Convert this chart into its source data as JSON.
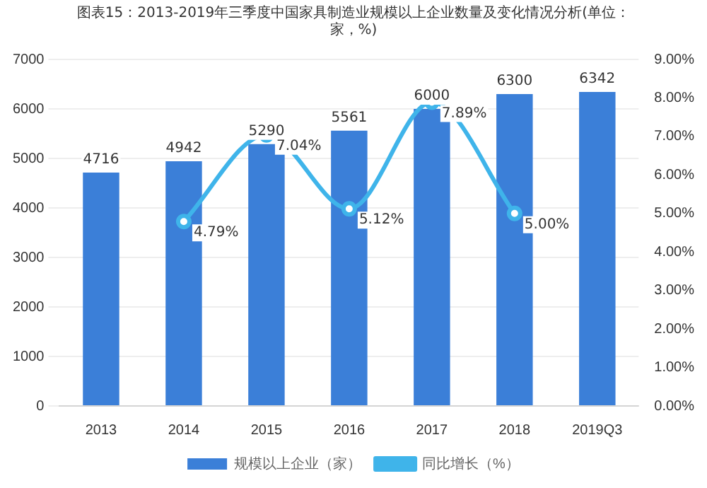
{
  "chart_data": {
    "type": "bar",
    "title": "图表15：2013-2019年三季度中国家具制造业规模以上企业数量及变化情况分析(单位：家，%)",
    "categories": [
      "2013",
      "2014",
      "2015",
      "2016",
      "2017",
      "2018",
      "2019Q3"
    ],
    "series": [
      {
        "name": "规模以上企业（家）",
        "color": "#3b7fd8",
        "values": [
          4716,
          4942,
          5290,
          5561,
          6000,
          6300,
          6342
        ]
      },
      {
        "name": "同比增长（%）",
        "type": "line",
        "axis": "y2",
        "color": "#3fb4ea",
        "values": [
          null,
          4.79,
          7.04,
          5.12,
          7.89,
          5.0,
          null
        ],
        "value_labels": [
          null,
          "4.79%",
          "7.04%",
          "5.12%",
          "7.89%",
          "5.00%",
          null
        ]
      }
    ],
    "ylim": [
      0,
      7000
    ],
    "yticks": [
      0,
      1000,
      2000,
      3000,
      4000,
      5000,
      6000,
      7000
    ],
    "y2lim": [
      0,
      9
    ],
    "y2ticks": [
      {
        "value": 0,
        "label": "0.00%"
      },
      {
        "value": 1,
        "label": "1.00%"
      },
      {
        "value": 2,
        "label": "2.00%"
      },
      {
        "value": 3,
        "label": "3.00%"
      },
      {
        "value": 4,
        "label": "4.00%"
      },
      {
        "value": 5,
        "label": "5.00%"
      },
      {
        "value": 6,
        "label": "6.00%"
      },
      {
        "value": 7,
        "label": "7.00%"
      },
      {
        "value": 8,
        "label": "8.00%"
      },
      {
        "value": 9,
        "label": "9.00%"
      }
    ],
    "data_labels": true,
    "grid": "y",
    "legend": "bottom",
    "marker": "circle",
    "line_style": "solid"
  }
}
